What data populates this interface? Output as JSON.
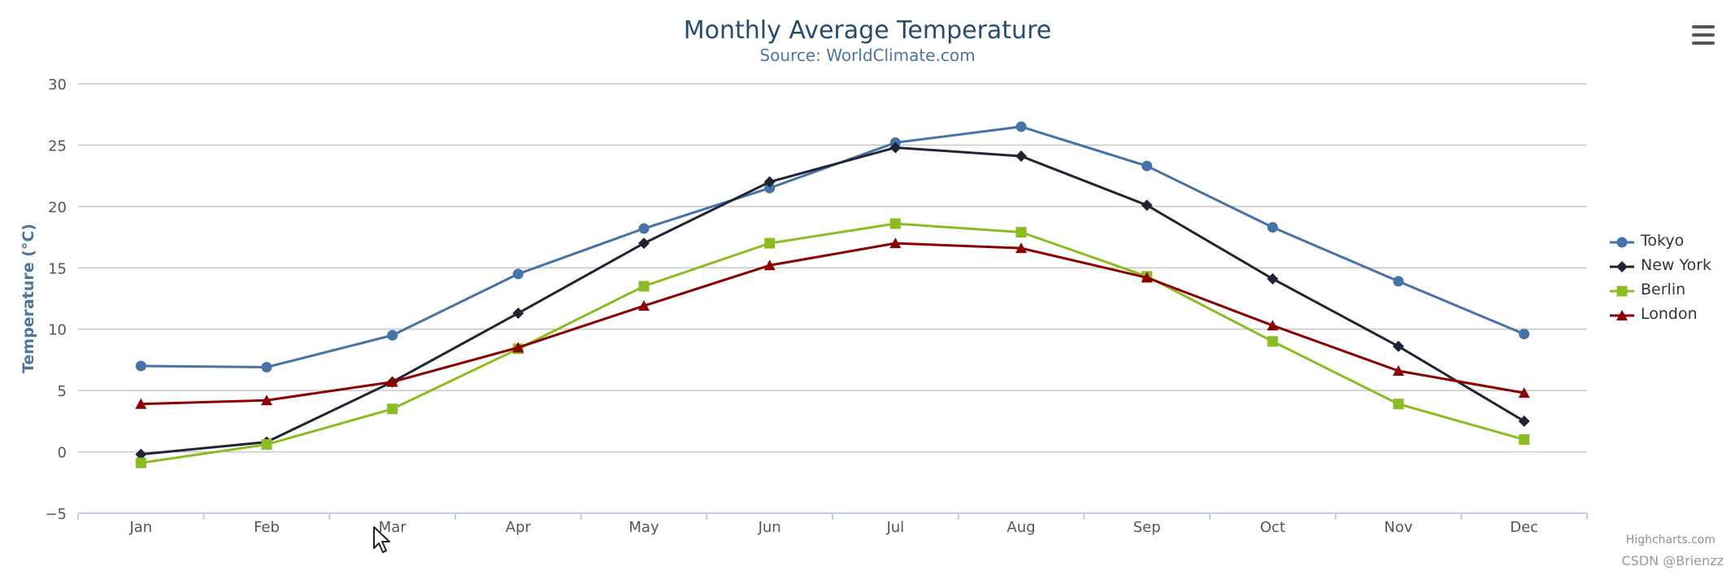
{
  "chart_data": {
    "type": "line",
    "title": "Monthly Average Temperature",
    "subtitle": "Source: WorldClimate.com",
    "ylabel": "Temperature (°C)",
    "xlabel": "",
    "categories": [
      "Jan",
      "Feb",
      "Mar",
      "Apr",
      "May",
      "Jun",
      "Jul",
      "Aug",
      "Sep",
      "Oct",
      "Nov",
      "Dec"
    ],
    "ylim": [
      -5,
      30
    ],
    "yticks": [
      -5,
      0,
      5,
      10,
      15,
      20,
      25,
      30
    ],
    "grid": true,
    "legend_position": "right",
    "series": [
      {
        "name": "Tokyo",
        "marker": "circle",
        "color": "#4572a7",
        "values": [
          7.0,
          6.9,
          9.5,
          14.5,
          18.2,
          21.5,
          25.2,
          26.5,
          23.3,
          18.3,
          13.9,
          9.6
        ]
      },
      {
        "name": "New York",
        "marker": "diamond",
        "color": "#1f2535",
        "values": [
          -0.2,
          0.8,
          5.7,
          11.3,
          17.0,
          22.0,
          24.8,
          24.1,
          20.1,
          14.1,
          8.6,
          2.5
        ]
      },
      {
        "name": "Berlin",
        "marker": "square",
        "color": "#8bbc21",
        "values": [
          -0.9,
          0.6,
          3.5,
          8.4,
          13.5,
          17.0,
          18.6,
          17.9,
          14.3,
          9.0,
          3.9,
          1.0
        ]
      },
      {
        "name": "London",
        "marker": "triangle",
        "color": "#8b0000",
        "values": [
          3.9,
          4.2,
          5.7,
          8.5,
          11.9,
          15.2,
          17.0,
          16.6,
          14.2,
          10.3,
          6.6,
          4.8
        ]
      }
    ]
  },
  "credits": "Highcharts.com",
  "watermark": "CSDN @Brienzz",
  "menu_icon": "hamburger-menu-icon",
  "cursor_icon": "mouse-pointer-icon"
}
